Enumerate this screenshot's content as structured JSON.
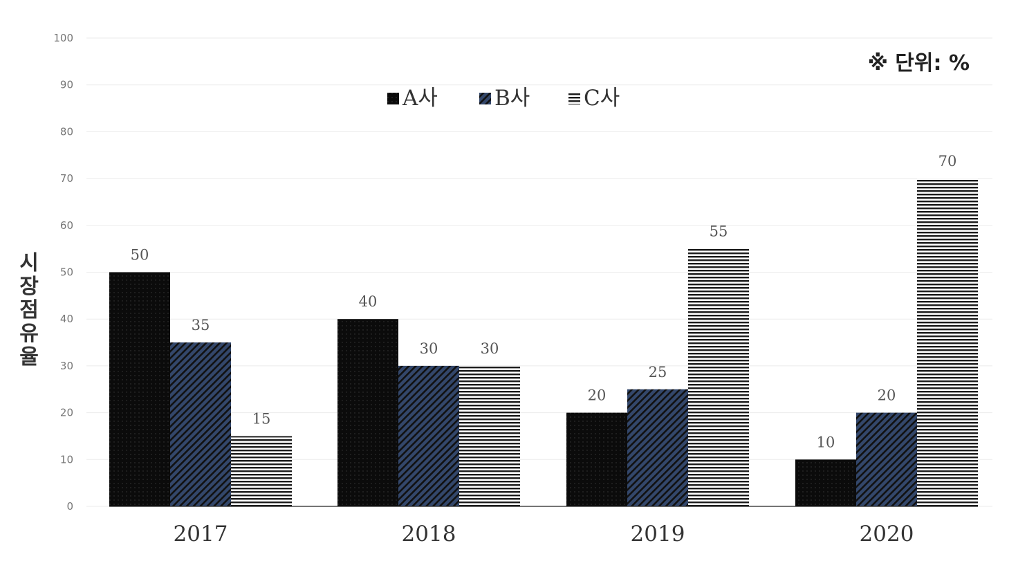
{
  "unit_note": "※ 단위: %",
  "chart_data": {
    "type": "bar",
    "title": "",
    "xlabel": "",
    "ylabel": "시장점유율",
    "ylim": [
      0,
      100
    ],
    "yticks": [
      0,
      10,
      20,
      30,
      40,
      50,
      60,
      70,
      80,
      90,
      100
    ],
    "categories": [
      "2017",
      "2018",
      "2019",
      "2020"
    ],
    "series": [
      {
        "name": "A사",
        "values": [
          50,
          40,
          20,
          10
        ],
        "color": "#0b0b0b",
        "pattern": "dots"
      },
      {
        "name": "B사",
        "values": [
          35,
          30,
          25,
          20
        ],
        "color": "#33476b",
        "pattern": "diagonal"
      },
      {
        "name": "C사",
        "values": [
          15,
          30,
          55,
          70
        ],
        "color": "#ffffff",
        "pattern": "horizontal"
      }
    ],
    "grid": true,
    "legend_position": "top-center",
    "data_labels": true
  }
}
